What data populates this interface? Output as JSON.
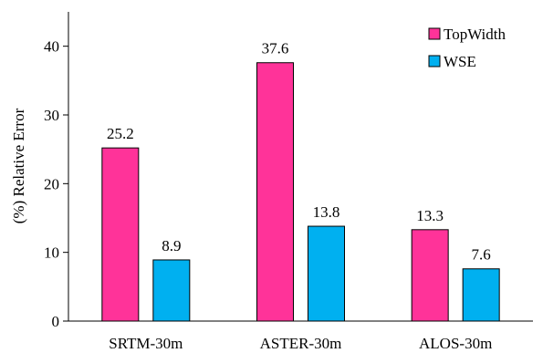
{
  "chart_data": {
    "type": "bar",
    "categories": [
      "SRTM-30m",
      "ASTER-30m",
      "ALOS-30m"
    ],
    "series": [
      {
        "name": "TopWidth",
        "values": [
          25.2,
          37.6,
          13.3
        ],
        "color": "#FF3399"
      },
      {
        "name": "WSE",
        "values": [
          8.9,
          13.8,
          7.6
        ],
        "color": "#00B0F0"
      }
    ],
    "data_labels": [
      [
        "25.2",
        "37.6",
        "13.3"
      ],
      [
        "8.9",
        "13.8",
        "7.6"
      ]
    ],
    "ylabel": "(%) Relative Error",
    "ylim": [
      0,
      45
    ],
    "yticks": [
      0,
      10,
      20,
      30,
      40
    ],
    "grid": false,
    "legend": "top-right"
  }
}
